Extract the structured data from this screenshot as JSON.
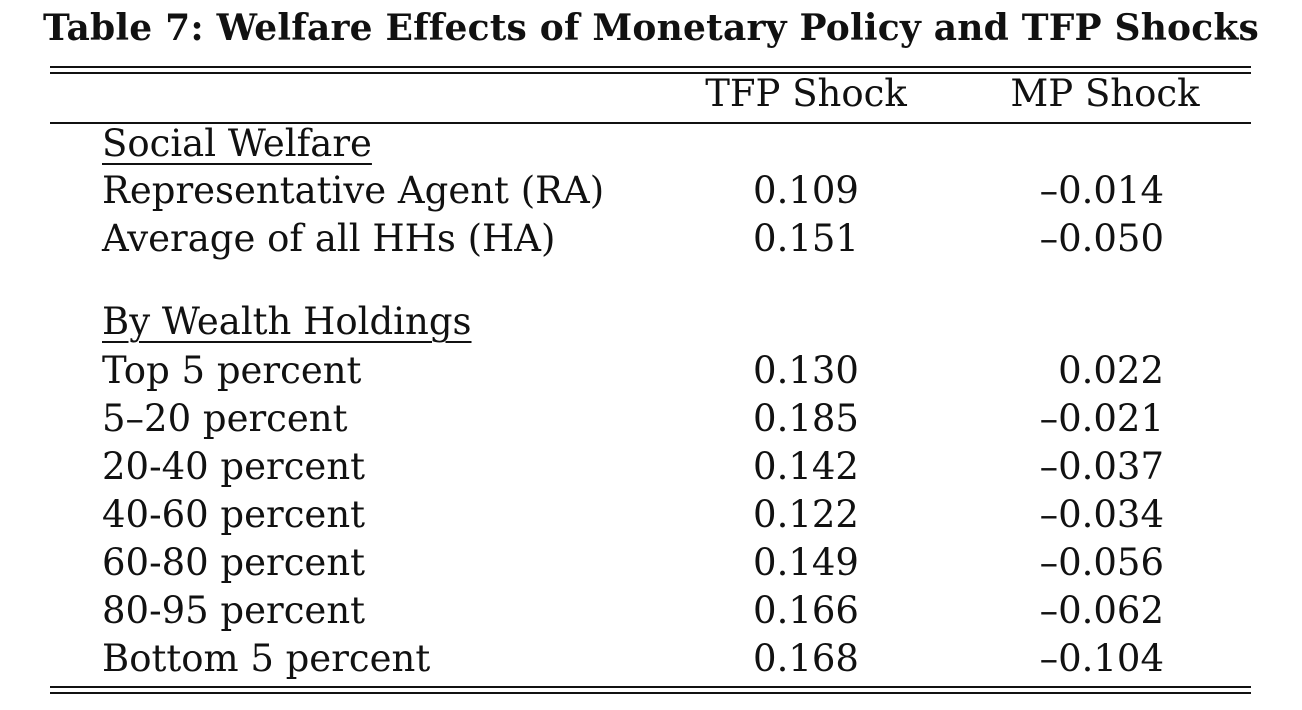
{
  "table": {
    "title": "Table 7: Welfare Effects of Monetary Policy and TFP Shocks",
    "columns": [
      "TFP Shock",
      "MP Shock"
    ],
    "sections": [
      {
        "heading": "Social Welfare",
        "rows": [
          {
            "label": "Representative Agent (RA)",
            "tfp": "0.109",
            "mp": "–0.014"
          },
          {
            "label": "Average of all HHs (HA)",
            "tfp": "0.151",
            "mp": "–0.050"
          }
        ]
      },
      {
        "heading": "By Wealth Holdings",
        "rows": [
          {
            "label": "Top 5 percent",
            "tfp": "0.130",
            "mp": "0.022"
          },
          {
            "label": "5–20 percent",
            "tfp": "0.185",
            "mp": "–0.021"
          },
          {
            "label": "20-40 percent",
            "tfp": "0.142",
            "mp": "–0.037"
          },
          {
            "label": "40-60 percent",
            "tfp": "0.122",
            "mp": "–0.034"
          },
          {
            "label": "60-80 percent",
            "tfp": "0.149",
            "mp": "–0.056"
          },
          {
            "label": "80-95 percent",
            "tfp": "0.166",
            "mp": "–0.062"
          },
          {
            "label": "Bottom 5 percent",
            "tfp": "0.168",
            "mp": "–0.104"
          }
        ]
      }
    ]
  }
}
